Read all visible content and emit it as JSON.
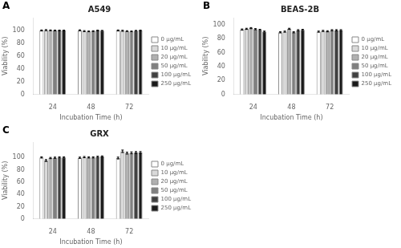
{
  "chart_data": [
    {
      "type": "bar",
      "title": "A549",
      "annotations": [
        "A"
      ],
      "categories": [
        24,
        48,
        72
      ],
      "xlabel": "Incubation Time (h)",
      "ylabel": "Viability (%)",
      "ylim": [
        0,
        120
      ],
      "yticks": [
        0,
        20,
        40,
        60,
        80,
        100
      ],
      "grid": false,
      "legend": "right",
      "series": [
        {
          "name": "0 μg/mL",
          "color": "#ffffff",
          "values": [
            100.0,
            100.2,
            100.0
          ],
          "errors": [
            0.8,
            0.8,
            0.8
          ]
        },
        {
          "name": "10 μg/mL",
          "color": "#d9d9d9",
          "values": [
            100.5,
            99.0,
            99.5
          ],
          "errors": [
            0.8,
            0.8,
            0.8
          ]
        },
        {
          "name": "20 μg/mL",
          "color": "#b0b0b0",
          "values": [
            100.2,
            98.5,
            99.0
          ],
          "errors": [
            0.6,
            0.6,
            0.6
          ]
        },
        {
          "name": "50 μg/mL",
          "color": "#808080",
          "values": [
            100.0,
            99.0,
            98.5
          ],
          "errors": [
            0.6,
            0.6,
            0.6
          ]
        },
        {
          "name": "100 μg/mL",
          "color": "#404040",
          "values": [
            100.0,
            100.0,
            99.5
          ],
          "errors": [
            0.6,
            0.6,
            0.6
          ]
        },
        {
          "name": "250 μg/mL",
          "color": "#1a1a1a",
          "values": [
            100.0,
            99.5,
            100.0
          ],
          "errors": [
            0.6,
            0.6,
            0.6
          ]
        }
      ]
    },
    {
      "type": "bar",
      "title": "BEAS-2B",
      "annotations": [
        "B"
      ],
      "categories": [
        24,
        48,
        72
      ],
      "xlabel": "Incubation Time (h)",
      "ylabel": "Viability (%)",
      "ylim": [
        0,
        110
      ],
      "yticks": [
        0,
        20,
        40,
        60,
        80,
        100
      ],
      "grid": false,
      "legend": "right",
      "series": [
        {
          "name": "0 μg/mL",
          "color": "#ffffff",
          "values": [
            93.0,
            89.0,
            90.0
          ],
          "errors": [
            0.8,
            0.8,
            0.8
          ]
        },
        {
          "name": "10 μg/mL",
          "color": "#d9d9d9",
          "values": [
            94.0,
            90.0,
            91.0
          ],
          "errors": [
            0.8,
            0.8,
            0.8
          ]
        },
        {
          "name": "20 μg/mL",
          "color": "#b0b0b0",
          "values": [
            95.0,
            94.0,
            90.5
          ],
          "errors": [
            0.8,
            0.8,
            0.8
          ]
        },
        {
          "name": "50 μg/mL",
          "color": "#808080",
          "values": [
            93.5,
            89.0,
            92.0
          ],
          "errors": [
            0.8,
            0.8,
            0.8
          ]
        },
        {
          "name": "100 μg/mL",
          "color": "#404040",
          "values": [
            92.5,
            92.0,
            92.0
          ],
          "errors": [
            0.8,
            0.8,
            0.8
          ]
        },
        {
          "name": "250 μg/mL",
          "color": "#1a1a1a",
          "values": [
            90.0,
            92.5,
            92.0
          ],
          "errors": [
            0.8,
            0.8,
            0.8
          ]
        }
      ]
    },
    {
      "type": "bar",
      "title": "GRX",
      "annotations": [
        "C"
      ],
      "categories": [
        24,
        48,
        72
      ],
      "xlabel": "Incubation Time (h)",
      "ylabel": "Viability (%)",
      "ylim": [
        0,
        125
      ],
      "yticks": [
        0,
        20,
        40,
        60,
        80,
        100
      ],
      "grid": false,
      "legend": "right",
      "series": [
        {
          "name": "0 μg/mL",
          "color": "#ffffff",
          "values": [
            100.0,
            99.5,
            99.0
          ],
          "errors": [
            1.0,
            1.0,
            1.5
          ]
        },
        {
          "name": "10 μg/mL",
          "color": "#d9d9d9",
          "values": [
            95.0,
            100.5,
            110.0
          ],
          "errors": [
            1.5,
            1.0,
            2.0
          ]
        },
        {
          "name": "20 μg/mL",
          "color": "#b0b0b0",
          "values": [
            99.0,
            100.0,
            107.0
          ],
          "errors": [
            1.0,
            1.0,
            1.5
          ]
        },
        {
          "name": "50 μg/mL",
          "color": "#808080",
          "values": [
            99.5,
            100.0,
            107.5
          ],
          "errors": [
            1.0,
            1.0,
            1.5
          ]
        },
        {
          "name": "100 μg/mL",
          "color": "#404040",
          "values": [
            100.0,
            101.0,
            108.0
          ],
          "errors": [
            1.0,
            1.0,
            1.5
          ]
        },
        {
          "name": "250 μg/mL",
          "color": "#1a1a1a",
          "values": [
            100.0,
            101.5,
            108.0
          ],
          "errors": [
            1.0,
            1.0,
            1.5
          ]
        }
      ]
    }
  ]
}
